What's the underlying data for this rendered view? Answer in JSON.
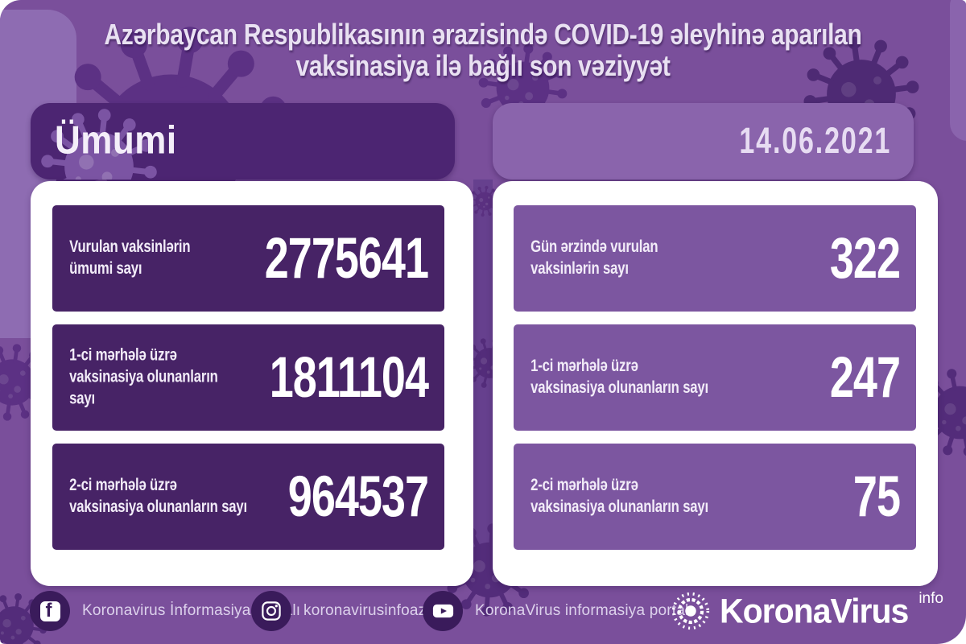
{
  "title": {
    "line1": "Azərbaycan Respublikasının ərazisində COVID-19 əleyhinə aparılan",
    "line2": "vaksinasiya ilə bağlı son vəziyyət"
  },
  "left_panel": {
    "header": "Ümumi",
    "stats": [
      {
        "label1": "Vurulan vaksinlərin",
        "label2": "ümumi sayı",
        "value": "2775641"
      },
      {
        "label1": "1-ci mərhələ üzrə",
        "label2": "vaksinasiya olunanların sayı",
        "value": "1811104"
      },
      {
        "label1": "2-ci mərhələ üzrə",
        "label2": "vaksinasiya olunanların sayı",
        "value": "964537"
      }
    ]
  },
  "right_panel": {
    "date": "14.06.2021",
    "stats": [
      {
        "label1": "Gün ərzində vurulan",
        "label2": "vaksinlərin sayı",
        "value": "322"
      },
      {
        "label1": "1-ci mərhələ üzrə",
        "label2": "vaksinasiya olunanların sayı",
        "value": "247"
      },
      {
        "label1": "2-ci mərhələ üzrə",
        "label2": "vaksinasiya olunanların sayı",
        "value": "75"
      }
    ]
  },
  "footer": {
    "social": [
      {
        "network": "facebook",
        "glyph": "f",
        "label": "Koronavirus İnformasiya Portalı"
      },
      {
        "network": "instagram",
        "label": "koronavirusinfoaz"
      },
      {
        "network": "youtube",
        "label": "KoronaVirus informasiya portalı"
      }
    ],
    "brand": {
      "name": "KoronaVirus",
      "suffix": "info"
    }
  },
  "colors": {
    "canvas": "#7a4f9b",
    "gap_strip": "#66408e",
    "left_header": "#4c2572",
    "left_card": "#472366",
    "right_header": "#8a64ac",
    "right_card": "#7c56a0",
    "panel": "#ffffff",
    "title_ink": "#e9e1f2",
    "footer_circle": "#3a1b5b",
    "footer_ink": "#ddd2ec",
    "deco_dark": "#5c3184"
  },
  "chart_data": {
    "type": "table",
    "title": "Azərbaycan Respublikasının ərazisində COVID-19 əleyhinə aparılan vaksinasiya ilə bağlı son vəziyyət",
    "date": "14.06.2021",
    "groups": [
      {
        "name": "Ümumi",
        "rows": [
          {
            "label": "Vurulan vaksinlərin ümumi sayı",
            "value": 2775641
          },
          {
            "label": "1-ci mərhələ üzrə vaksinasiya olunanların sayı",
            "value": 1811104
          },
          {
            "label": "2-ci mərhələ üzrə vaksinasiya olunanların sayı",
            "value": 964537
          }
        ]
      },
      {
        "name": "14.06.2021",
        "rows": [
          {
            "label": "Gün ərzində vurulan vaksinlərin sayı",
            "value": 322
          },
          {
            "label": "1-ci mərhələ üzrə vaksinasiya olunanların sayı",
            "value": 247
          },
          {
            "label": "2-ci mərhələ üzrə vaksinasiya olunanların sayı",
            "value": 75
          }
        ]
      }
    ]
  }
}
